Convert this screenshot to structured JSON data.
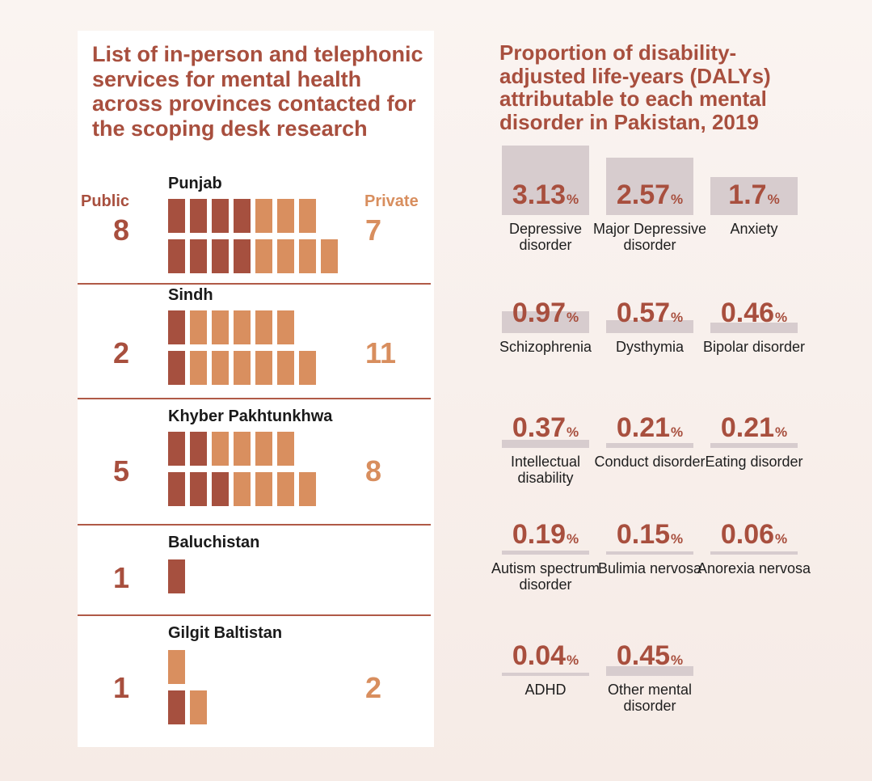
{
  "left": {
    "title": "List of in-person and telephonic services for mental health across provinces contacted for the scoping desk research",
    "public_label": "Public",
    "private_label": "Private",
    "provinces": [
      {
        "name": "Punjab",
        "public": "8",
        "private": "7"
      },
      {
        "name": "Sindh",
        "public": "2",
        "private": "11"
      },
      {
        "name": "Khyber Pakhtunkhwa",
        "public": "5",
        "private": "8"
      },
      {
        "name": "Baluchistan",
        "public": "1",
        "private": ""
      },
      {
        "name": "Gilgit Baltistan",
        "public": "1",
        "private": "2"
      }
    ]
  },
  "right": {
    "title": "Proportion of disability-adjusted life-years (DALYs) attributable to each mental disorder in Pakistan, 2019",
    "unit": "%",
    "items": [
      {
        "value": "3.13",
        "label": "Depressive disorder"
      },
      {
        "value": "2.57",
        "label": "Major Depressive disorder"
      },
      {
        "value": "1.7",
        "label": "Anxiety"
      },
      {
        "value": "0.97",
        "label": "Schizophrenia"
      },
      {
        "value": "0.57",
        "label": "Dysthymia"
      },
      {
        "value": "0.46",
        "label": "Bipolar disorder"
      },
      {
        "value": "0.37",
        "label": "Intellectual disability"
      },
      {
        "value": "0.21",
        "label": "Conduct disorder"
      },
      {
        "value": "0.21",
        "label": "Eating disorder"
      },
      {
        "value": "0.19",
        "label": "Autism spectrum disorder"
      },
      {
        "value": "0.15",
        "label": "Bulimia nervosa"
      },
      {
        "value": "0.06",
        "label": "Anorexia nervosa"
      },
      {
        "value": "0.04",
        "label": "ADHD"
      },
      {
        "value": "0.45",
        "label": "Other mental disorder"
      }
    ]
  },
  "colors": {
    "public": "#a6503f",
    "private": "#d98f5f",
    "title": "#a84f3e",
    "bar_bg": "#d7ccce"
  },
  "chart_data": [
    {
      "type": "bar",
      "title": "List of in-person and telephonic services for mental health across provinces contacted for the scoping desk research",
      "categories": [
        "Punjab",
        "Sindh",
        "Khyber Pakhtunkhwa",
        "Baluchistan",
        "Gilgit Baltistan"
      ],
      "series": [
        {
          "name": "Public",
          "values": [
            8,
            2,
            5,
            1,
            1
          ]
        },
        {
          "name": "Private",
          "values": [
            7,
            11,
            8,
            0,
            2
          ]
        }
      ]
    },
    {
      "type": "bar",
      "title": "Proportion of disability-adjusted life-years (DALYs) attributable to each mental disorder in Pakistan, 2019",
      "categories": [
        "Depressive disorder",
        "Major Depressive disorder",
        "Anxiety",
        "Schizophrenia",
        "Dysthymia",
        "Bipolar disorder",
        "Intellectual disability",
        "Conduct disorder",
        "Eating disorder",
        "Autism spectrum disorder",
        "Bulimia nervosa",
        "Anorexia nervosa",
        "ADHD",
        "Other mental disorder"
      ],
      "values": [
        3.13,
        2.57,
        1.7,
        0.97,
        0.57,
        0.46,
        0.37,
        0.21,
        0.21,
        0.19,
        0.15,
        0.06,
        0.04,
        0.45
      ],
      "ylabel": "%"
    }
  ]
}
